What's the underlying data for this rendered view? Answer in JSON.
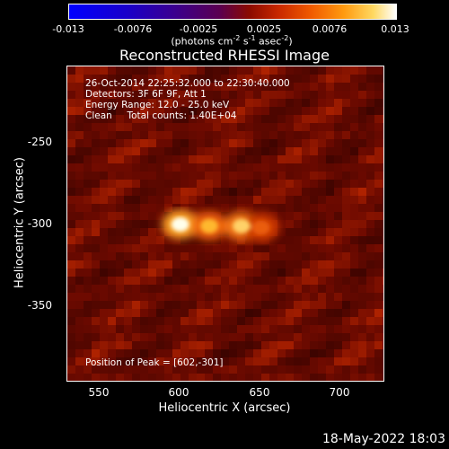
{
  "colorbar": {
    "ticks": [
      "-0.013",
      "-0.0076",
      "-0.0025",
      "0.0025",
      "0.0076",
      "0.013"
    ],
    "units": "(photons cm",
    "units_exp1": "-2",
    "units_mid": " s",
    "units_exp2": "-1",
    "units_mid2": " asec",
    "units_exp3": "-2",
    "units_end": ")"
  },
  "title": "Reconstructed RHESSI Image",
  "info": {
    "time": "26-Oct-2014 22:25:32.000 to 22:30:40.000",
    "detectors": "Detectors: 3F 6F 9F, Att 1",
    "energy": "Energy Range: 12.0 - 25.0 keV",
    "method": "Clean     Total counts: 1.40E+04",
    "peak": "Position of Peak = [602,-301]"
  },
  "axes": {
    "xlabel": "Heliocentric X (arcsec)",
    "ylabel": "Heliocentric Y (arcsec)",
    "xticks": [
      "550",
      "600",
      "650",
      "700"
    ],
    "yticks": [
      "-250",
      "-300",
      "-350"
    ]
  },
  "footer": {
    "date": "18-May-2022 18:03"
  },
  "chart_data": {
    "type": "heatmap",
    "title": "Reconstructed RHESSI Image",
    "xlabel": "Heliocentric X (arcsec)",
    "ylabel": "Heliocentric Y (arcsec)",
    "xlim": [
      532,
      728
    ],
    "ylim": [
      -397,
      -202
    ],
    "colorbar_range": [
      -0.013,
      0.013
    ],
    "peak": [
      602,
      -301
    ],
    "sources": [
      {
        "x": 602,
        "y": -300,
        "intensity": 1.0
      },
      {
        "x": 620,
        "y": -301,
        "intensity": 0.85
      },
      {
        "x": 640,
        "y": -301,
        "intensity": 0.9
      },
      {
        "x": 652,
        "y": -302,
        "intensity": 0.7
      }
    ]
  }
}
